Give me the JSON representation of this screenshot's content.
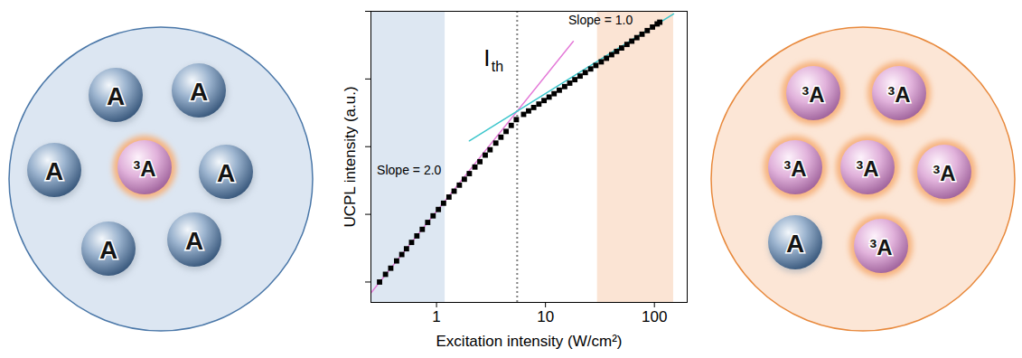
{
  "chart_data": {
    "type": "scatter",
    "x_label": "Excitation intensity (W/cm²)",
    "y_label": "UCPL intensity (a.u.)",
    "log": true,
    "xlim": [
      0.25,
      200
    ],
    "ylim": [
      0.5,
      10000
    ],
    "xticks": [
      1,
      10,
      100
    ],
    "yticks": [
      1,
      10,
      100,
      1000,
      10000
    ],
    "tick_labels": "x",
    "grid": false,
    "marker": "square",
    "color": "#000000",
    "x": [
      0.3,
      0.34,
      0.38,
      0.43,
      0.48,
      0.53,
      0.59,
      0.66,
      0.74,
      0.83,
      0.93,
      1.04,
      1.16,
      1.3,
      1.45,
      1.62,
      1.8,
      2.0,
      2.25,
      2.5,
      2.8,
      3.1,
      3.5,
      3.9,
      4.35,
      4.85,
      5.4,
      6.3,
      7.0,
      7.8,
      8.7,
      9.7,
      10.8,
      12,
      13.4,
      15,
      16.7,
      18.6,
      20.8,
      23.2,
      26,
      29,
      32.5,
      36.3,
      40.5,
      45,
      50,
      56,
      62,
      69,
      77,
      86,
      96,
      106,
      112
    ],
    "values": [
      1.0,
      1.3,
      1.6,
      2.05,
      2.55,
      3.1,
      3.85,
      4.8,
      6.0,
      7.6,
      9.5,
      11.8,
      14.6,
      18,
      22,
      27,
      33,
      40,
      50,
      60,
      75,
      90,
      113,
      138,
      168,
      206,
      251,
      300,
      337,
      379,
      426,
      480,
      540,
      606,
      683,
      772,
      868,
      977,
      1104,
      1244,
      1407,
      1584,
      1791,
      2022,
      2283,
      2556,
      2871,
      3240,
      3621,
      4080,
      4590,
      5190,
      5850,
      6510,
      6900
    ],
    "regions": [
      {
        "x": [
          0.25,
          1.2
        ],
        "color": "#dde7f2"
      },
      {
        "x": [
          30,
          150
        ],
        "color": "#fbe4d4"
      }
    ],
    "threshold": {
      "value": 5.5,
      "line_style": "dotted",
      "color": "#808080"
    },
    "fit_lines": [
      {
        "x": [
          0.25,
          18
        ],
        "y": [
          0.69,
          3600
        ],
        "color": "#e47ad8",
        "line_style": "solid"
      },
      {
        "x": [
          2,
          150
        ],
        "y": [
          122,
          9165
        ],
        "color": "#3cc6cc",
        "line_style": "solid"
      }
    ],
    "annotations": [
      {
        "text": "Slope = 2.0",
        "x": 0.56,
        "y": 45
      },
      {
        "text": "Slope = 1.0",
        "x": 32,
        "y": 7300
      },
      {
        "text": "I",
        "subscript": "th",
        "x": 2.9,
        "y": 2000
      }
    ]
  },
  "diagrams": [
    {
      "molecules": [
        "A",
        "A",
        "A",
        "³A",
        "A",
        "A",
        "A"
      ]
    },
    {
      "molecules": [
        "³A",
        "³A",
        "³A",
        "³A",
        "³A",
        "A",
        "³A"
      ]
    }
  ]
}
